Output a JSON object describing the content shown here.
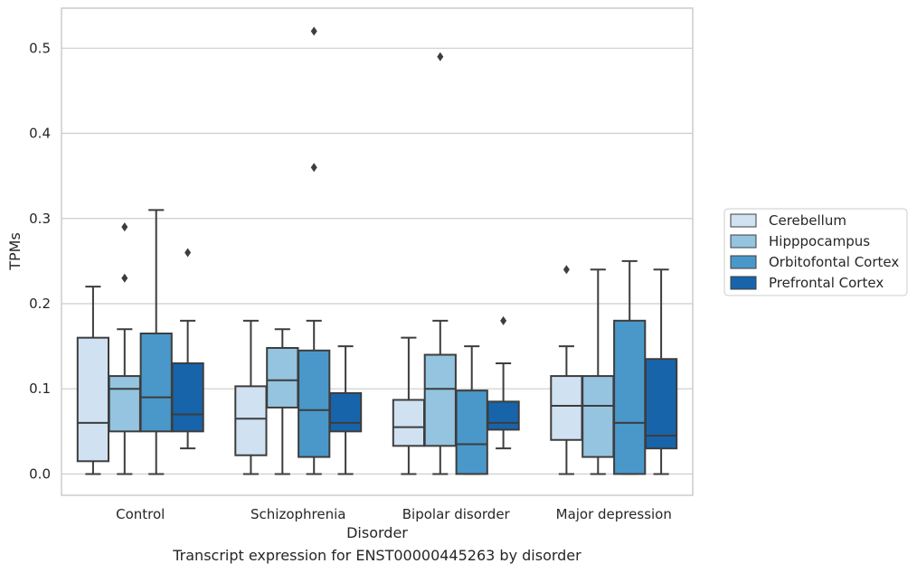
{
  "chart_data": {
    "type": "boxplot",
    "xlabel": "Disorder",
    "ylabel": "TPMs",
    "caption": "Transcript expression for ENST00000445263 by disorder",
    "categories": [
      "Control",
      "Schizophrenia",
      "Bipolar disorder",
      "Major depression"
    ],
    "ylim": [
      -0.025,
      0.547
    ],
    "yticks": [
      0.0,
      0.1,
      0.2,
      0.3,
      0.4,
      0.5
    ],
    "ytick_labels": [
      "0.0",
      "0.1",
      "0.2",
      "0.3",
      "0.4",
      "0.5"
    ],
    "grid": true,
    "legend_position": "right",
    "series": [
      {
        "name": "Cerebellum",
        "color": "#d0e1f2",
        "boxes": [
          {
            "whislo": 0.0,
            "q1": 0.015,
            "med": 0.06,
            "q3": 0.16,
            "whishi": 0.22,
            "fliers": []
          },
          {
            "whislo": 0.0,
            "q1": 0.022,
            "med": 0.065,
            "q3": 0.103,
            "whishi": 0.18,
            "fliers": []
          },
          {
            "whislo": 0.0,
            "q1": 0.033,
            "med": 0.055,
            "q3": 0.087,
            "whishi": 0.16,
            "fliers": []
          },
          {
            "whislo": 0.0,
            "q1": 0.04,
            "med": 0.08,
            "q3": 0.115,
            "whishi": 0.15,
            "fliers": [
              0.24
            ]
          }
        ]
      },
      {
        "name": "Hipppocampus",
        "color": "#94c4df",
        "boxes": [
          {
            "whislo": 0.0,
            "q1": 0.05,
            "med": 0.1,
            "q3": 0.115,
            "whishi": 0.17,
            "fliers": [
              0.23,
              0.29
            ]
          },
          {
            "whislo": 0.0,
            "q1": 0.078,
            "med": 0.11,
            "q3": 0.148,
            "whishi": 0.17,
            "fliers": []
          },
          {
            "whislo": 0.0,
            "q1": 0.033,
            "med": 0.1,
            "q3": 0.14,
            "whishi": 0.18,
            "fliers": [
              0.49
            ]
          },
          {
            "whislo": 0.0,
            "q1": 0.02,
            "med": 0.08,
            "q3": 0.115,
            "whishi": 0.24,
            "fliers": []
          }
        ]
      },
      {
        "name": "Orbitofontal Cortex",
        "color": "#4a98c9",
        "boxes": [
          {
            "whislo": 0.0,
            "q1": 0.05,
            "med": 0.09,
            "q3": 0.165,
            "whishi": 0.31,
            "fliers": []
          },
          {
            "whislo": 0.0,
            "q1": 0.02,
            "med": 0.075,
            "q3": 0.145,
            "whishi": 0.18,
            "fliers": [
              0.36,
              0.52
            ]
          },
          {
            "whislo": 0.0,
            "q1": 0.0,
            "med": 0.035,
            "q3": 0.098,
            "whishi": 0.15,
            "fliers": []
          },
          {
            "whislo": 0.0,
            "q1": 0.0,
            "med": 0.06,
            "q3": 0.18,
            "whishi": 0.25,
            "fliers": []
          }
        ]
      },
      {
        "name": "Prefrontal Cortex",
        "color": "#1764ab",
        "boxes": [
          {
            "whislo": 0.03,
            "q1": 0.05,
            "med": 0.07,
            "q3": 0.13,
            "whishi": 0.18,
            "fliers": [
              0.26
            ]
          },
          {
            "whislo": 0.0,
            "q1": 0.05,
            "med": 0.06,
            "q3": 0.095,
            "whishi": 0.15,
            "fliers": []
          },
          {
            "whislo": 0.03,
            "q1": 0.052,
            "med": 0.06,
            "q3": 0.085,
            "whishi": 0.13,
            "fliers": [
              0.18
            ]
          },
          {
            "whislo": 0.0,
            "q1": 0.03,
            "med": 0.045,
            "q3": 0.135,
            "whishi": 0.24,
            "fliers": []
          }
        ]
      }
    ]
  }
}
